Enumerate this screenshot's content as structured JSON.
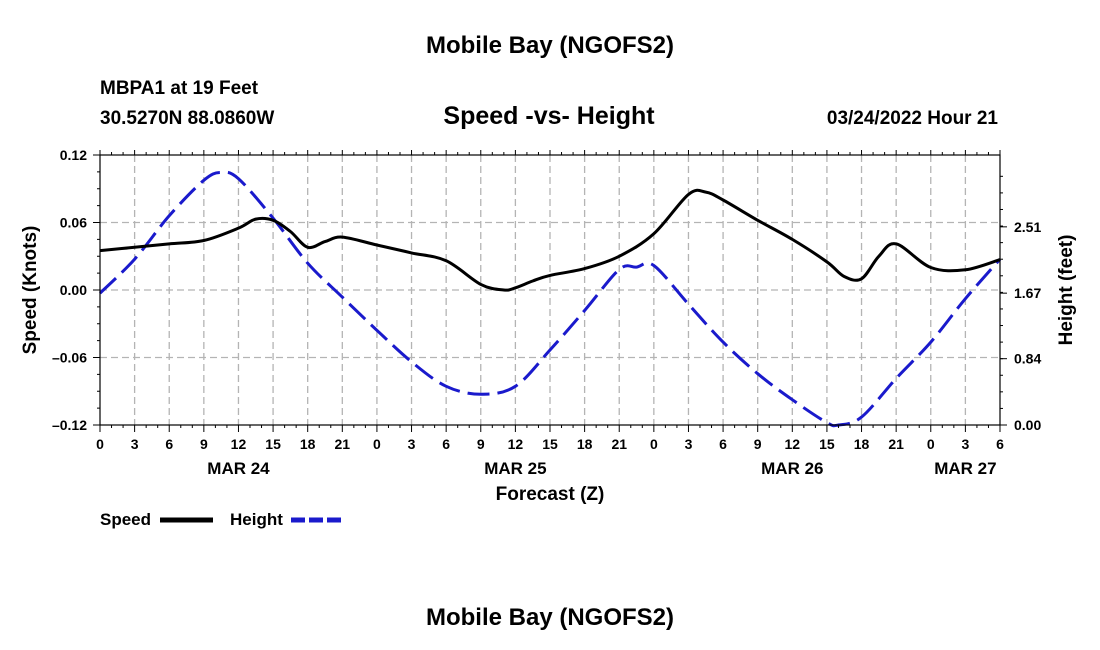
{
  "page": {
    "title_top": "Mobile Bay (NGOFS2)",
    "title_bottom": "Mobile Bay (NGOFS2)",
    "station": "MBPA1 at 19 Feet",
    "coords": "30.5270N  88.0860W",
    "chart_title": "Speed -vs- Height",
    "datetime": "03/24/2022 Hour 21"
  },
  "chart_data": {
    "type": "line",
    "title": "Speed -vs- Height",
    "xlabel": "Forecast (Z)",
    "ylabel": "Speed (Knots)",
    "y2label": "Height (feet)",
    "x_unit": "hours from MAR 24 00Z",
    "xlim": [
      0,
      78
    ],
    "ylim": [
      -0.12,
      0.12
    ],
    "y2lim": [
      0.0,
      3.42
    ],
    "grid": true,
    "x_ticks": [
      0,
      3,
      6,
      9,
      12,
      15,
      18,
      21,
      24,
      27,
      30,
      33,
      36,
      39,
      42,
      45,
      48,
      51,
      54,
      57,
      60,
      63,
      66,
      69,
      72,
      75,
      78
    ],
    "x_tick_labels": [
      "0",
      "3",
      "6",
      "9",
      "12",
      "15",
      "18",
      "21",
      "0",
      "3",
      "6",
      "9",
      "12",
      "15",
      "18",
      "21",
      "0",
      "3",
      "6",
      "9",
      "12",
      "15",
      "18",
      "21",
      "0",
      "3",
      "6"
    ],
    "date_labels": [
      {
        "label": "MAR 24",
        "x": 12
      },
      {
        "label": "MAR 25",
        "x": 36
      },
      {
        "label": "MAR 26",
        "x": 60
      },
      {
        "label": "MAR 27",
        "x": 75
      }
    ],
    "y_ticks": [
      -0.12,
      -0.06,
      0.0,
      0.06,
      0.12
    ],
    "y_tick_labels": [
      "–0.12",
      "–0.06",
      "0.00",
      "0.06",
      "0.12"
    ],
    "y2_ticks": [
      0.0,
      0.84,
      1.67,
      2.51
    ],
    "y2_tick_labels": [
      "0.00",
      "0.84",
      "1.67",
      "2.51"
    ],
    "legend": [
      {
        "name": "Speed",
        "color": "#000000",
        "dash": "solid"
      },
      {
        "name": "Height",
        "color": "#1a1acc",
        "dash": "dashed"
      }
    ],
    "series": [
      {
        "name": "Speed",
        "axis": "left",
        "color": "#000000",
        "x": [
          0,
          3,
          6,
          9,
          12,
          13.5,
          15,
          16.5,
          18,
          19.5,
          21,
          24,
          27,
          30,
          33,
          35,
          36,
          37.5,
          39,
          42,
          45,
          48,
          51,
          52.5,
          54,
          57,
          60,
          63,
          64.5,
          66,
          67.5,
          69,
          72,
          75,
          78
        ],
        "values": [
          0.035,
          0.038,
          0.041,
          0.044,
          0.055,
          0.063,
          0.062,
          0.052,
          0.038,
          0.043,
          0.047,
          0.04,
          0.033,
          0.026,
          0.005,
          0.0,
          0.002,
          0.008,
          0.013,
          0.019,
          0.03,
          0.05,
          0.085,
          0.087,
          0.08,
          0.062,
          0.045,
          0.025,
          0.012,
          0.01,
          0.03,
          0.041,
          0.02,
          0.018,
          0.027
        ]
      },
      {
        "name": "Height",
        "axis": "right",
        "color": "#1a1acc",
        "x": [
          0,
          3,
          6,
          9,
          10.5,
          12,
          15,
          18,
          21,
          24,
          27,
          30,
          33,
          36,
          39,
          42,
          45,
          46.5,
          48,
          51,
          54,
          57,
          60,
          63,
          64,
          66,
          69,
          72,
          75,
          78
        ],
        "values": [
          1.67,
          2.1,
          2.65,
          3.1,
          3.2,
          3.12,
          2.62,
          2.05,
          1.62,
          1.2,
          0.8,
          0.49,
          0.39,
          0.49,
          0.95,
          1.45,
          1.97,
          2.0,
          2.02,
          1.53,
          1.05,
          0.65,
          0.32,
          0.03,
          0.0,
          0.1,
          0.59,
          1.05,
          1.6,
          2.1
        ]
      }
    ]
  }
}
